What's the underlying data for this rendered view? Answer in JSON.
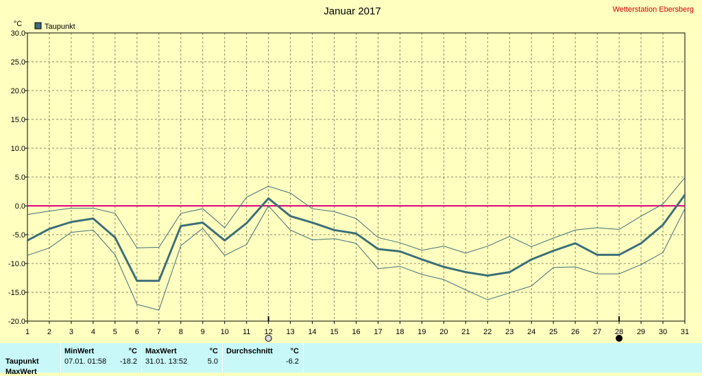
{
  "header": {
    "station": "Wetterstation Ebersberg"
  },
  "colors": {
    "background": "#ffffc0",
    "series": "#3c6e78",
    "envelope": "#3c6e78",
    "zero_line": "#e0007f",
    "grid": "#888866",
    "station": "#d40000",
    "stats_bg": "#c8f8f8"
  },
  "chart_data": {
    "type": "line",
    "title": "Januar 2017",
    "unit_label": "°C",
    "xlabel": "",
    "ylabel": "",
    "ylim": [
      -20,
      30
    ],
    "yticks": [
      30,
      25,
      20,
      15,
      10,
      5,
      0,
      -5,
      -10,
      -15,
      -20
    ],
    "ytick_labels": [
      "30.0",
      "25.0",
      "20.0",
      "15.0",
      "10.0",
      "5.0",
      "0.0",
      "-5.0",
      "-10.0",
      "-15.0",
      "-20.0"
    ],
    "xlim": [
      1,
      31
    ],
    "x": [
      1,
      2,
      3,
      4,
      5,
      6,
      7,
      8,
      9,
      10,
      11,
      12,
      13,
      14,
      15,
      16,
      17,
      18,
      19,
      20,
      21,
      22,
      23,
      24,
      25,
      26,
      27,
      28,
      29,
      30,
      31
    ],
    "x_labels": [
      "1",
      "2",
      "3",
      "4",
      "5",
      "6",
      "7",
      "8",
      "9",
      "10",
      "11",
      "12",
      "13",
      "14",
      "15",
      "16",
      "17",
      "18",
      "19",
      "20",
      "21",
      "22",
      "23",
      "24",
      "25",
      "26",
      "27",
      "28",
      "29",
      "30",
      "31"
    ],
    "grid": true,
    "legend": "top-left",
    "series": [
      {
        "name": "Taupunkt",
        "values": [
          -6.0,
          -4.0,
          -2.8,
          -2.2,
          -5.5,
          -13.0,
          -13.0,
          -3.5,
          -2.9,
          -6.0,
          -3.0,
          1.3,
          -1.8,
          -2.9,
          -4.2,
          -4.8,
          -7.5,
          -7.9,
          -9.3,
          -10.6,
          -11.5,
          -12.1,
          -11.5,
          -9.3,
          -7.8,
          -6.5,
          -8.5,
          -8.5,
          -6.5,
          -3.3,
          1.9
        ]
      }
    ],
    "envelope_max": [
      -1.5,
      -0.9,
      -0.4,
      -0.4,
      -1.3,
      -7.3,
      -7.2,
      -1.3,
      -0.5,
      -3.8,
      1.5,
      3.4,
      2.2,
      -0.5,
      -1.0,
      -2.2,
      -5.5,
      -6.4,
      -7.7,
      -7.0,
      -8.2,
      -7.0,
      -5.3,
      -7.1,
      -5.6,
      -4.2,
      -3.8,
      -4.1,
      -1.8,
      0.3,
      4.9
    ],
    "envelope_min": [
      -8.6,
      -7.3,
      -4.6,
      -4.2,
      -8.5,
      -17.1,
      -18.1,
      -6.9,
      -3.9,
      -8.6,
      -6.7,
      0.0,
      -4.2,
      -5.9,
      -5.7,
      -6.5,
      -10.9,
      -10.5,
      -11.9,
      -12.8,
      -14.6,
      -16.3,
      -15.1,
      -13.9,
      -10.7,
      -10.6,
      -11.8,
      -11.8,
      -10.2,
      -8.1,
      -0.5
    ],
    "reference_line": 0,
    "moon_markers": [
      {
        "day": 12.0,
        "phase": "full"
      },
      {
        "day": 28.0,
        "phase": "new"
      }
    ]
  },
  "stats": {
    "row_label": "Taupunkt",
    "row2_label": "MaxWert",
    "min": {
      "header": "MinWert",
      "unit": "°C",
      "datetime": "07.01.  01:58",
      "value": "-18.2"
    },
    "max": {
      "header": "MaxWert",
      "unit": "°C",
      "datetime": "31.01.  13:52",
      "value": "5.0"
    },
    "avg": {
      "header": "Durchschnitt",
      "unit": "°C",
      "value": "-6.2"
    }
  }
}
